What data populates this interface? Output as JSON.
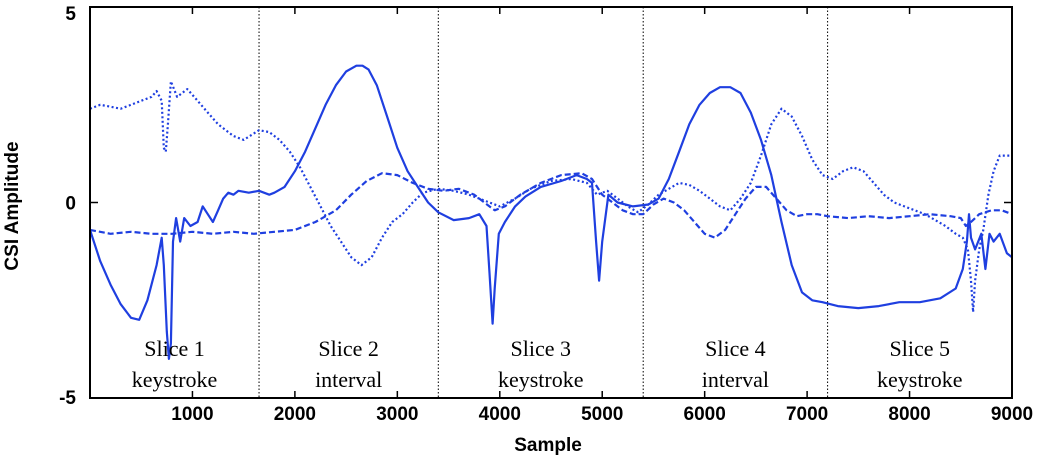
{
  "chart_data": {
    "type": "line",
    "xlabel": "Sample",
    "ylabel": "CSI Amplitude",
    "xlim": [
      0,
      9000
    ],
    "ylim": [
      -5,
      5
    ],
    "x_ticks": [
      "1000",
      "2000",
      "3000",
      "4000",
      "5000",
      "6000",
      "7000",
      "8000",
      "9000"
    ],
    "y_ticks": [
      "5",
      "0",
      "-5"
    ],
    "grid": false,
    "line_color": "#1f3fe0",
    "dividers": [
      1650,
      3400,
      5400,
      7200
    ],
    "slices": [
      {
        "label": "Slice 1",
        "sublabel": "keystroke",
        "x": 825
      },
      {
        "label": "Slice 2",
        "sublabel": "interval",
        "x": 2525
      },
      {
        "label": "Slice 3",
        "sublabel": "keystroke",
        "x": 4400
      },
      {
        "label": "Slice 4",
        "sublabel": "interval",
        "x": 6300
      },
      {
        "label": "Slice 5",
        "sublabel": "keystroke",
        "x": 8100
      }
    ],
    "series": [
      {
        "style": "solid",
        "points": [
          [
            0,
            -0.7
          ],
          [
            100,
            -1.5
          ],
          [
            200,
            -2.1
          ],
          [
            300,
            -2.6
          ],
          [
            400,
            -2.95
          ],
          [
            480,
            -3.0
          ],
          [
            560,
            -2.5
          ],
          [
            650,
            -1.6
          ],
          [
            700,
            -0.9
          ],
          [
            720,
            -1.6
          ],
          [
            750,
            -3.3
          ],
          [
            770,
            -4.0
          ],
          [
            790,
            -3.6
          ],
          [
            810,
            -1.0
          ],
          [
            840,
            -0.4
          ],
          [
            880,
            -1.0
          ],
          [
            920,
            -0.4
          ],
          [
            980,
            -0.6
          ],
          [
            1050,
            -0.5
          ],
          [
            1100,
            -0.1
          ],
          [
            1150,
            -0.3
          ],
          [
            1200,
            -0.5
          ],
          [
            1250,
            -0.2
          ],
          [
            1300,
            0.1
          ],
          [
            1350,
            0.25
          ],
          [
            1400,
            0.2
          ],
          [
            1450,
            0.3
          ],
          [
            1550,
            0.25
          ],
          [
            1650,
            0.3
          ],
          [
            1750,
            0.2
          ],
          [
            1800,
            0.25
          ],
          [
            1900,
            0.4
          ],
          [
            2000,
            0.8
          ],
          [
            2100,
            1.3
          ],
          [
            2200,
            1.9
          ],
          [
            2300,
            2.5
          ],
          [
            2400,
            3.0
          ],
          [
            2500,
            3.35
          ],
          [
            2600,
            3.5
          ],
          [
            2660,
            3.5
          ],
          [
            2720,
            3.4
          ],
          [
            2800,
            3.0
          ],
          [
            2900,
            2.2
          ],
          [
            3000,
            1.4
          ],
          [
            3100,
            0.8
          ],
          [
            3200,
            0.4
          ],
          [
            3300,
            0.0
          ],
          [
            3400,
            -0.25
          ],
          [
            3550,
            -0.45
          ],
          [
            3700,
            -0.4
          ],
          [
            3800,
            -0.3
          ],
          [
            3870,
            -0.6
          ],
          [
            3900,
            -1.8
          ],
          [
            3930,
            -3.1
          ],
          [
            3950,
            -2.2
          ],
          [
            3990,
            -0.8
          ],
          [
            4050,
            -0.5
          ],
          [
            4150,
            -0.1
          ],
          [
            4250,
            0.15
          ],
          [
            4400,
            0.4
          ],
          [
            4600,
            0.55
          ],
          [
            4750,
            0.7
          ],
          [
            4850,
            0.6
          ],
          [
            4900,
            0.5
          ],
          [
            4940,
            -1.0
          ],
          [
            4970,
            -2.0
          ],
          [
            5000,
            -1.0
          ],
          [
            5060,
            0.2
          ],
          [
            5150,
            0.0
          ],
          [
            5300,
            -0.1
          ],
          [
            5450,
            -0.05
          ],
          [
            5550,
            0.1
          ],
          [
            5650,
            0.6
          ],
          [
            5750,
            1.3
          ],
          [
            5850,
            2.0
          ],
          [
            5950,
            2.5
          ],
          [
            6050,
            2.8
          ],
          [
            6150,
            2.95
          ],
          [
            6250,
            2.95
          ],
          [
            6350,
            2.8
          ],
          [
            6450,
            2.3
          ],
          [
            6550,
            1.6
          ],
          [
            6650,
            0.7
          ],
          [
            6750,
            -0.5
          ],
          [
            6850,
            -1.6
          ],
          [
            6950,
            -2.3
          ],
          [
            7050,
            -2.5
          ],
          [
            7150,
            -2.55
          ],
          [
            7300,
            -2.65
          ],
          [
            7500,
            -2.7
          ],
          [
            7700,
            -2.65
          ],
          [
            7900,
            -2.55
          ],
          [
            8100,
            -2.55
          ],
          [
            8300,
            -2.45
          ],
          [
            8450,
            -2.2
          ],
          [
            8520,
            -1.7
          ],
          [
            8560,
            -1.0
          ],
          [
            8580,
            -0.3
          ],
          [
            8600,
            -0.9
          ],
          [
            8640,
            -1.2
          ],
          [
            8700,
            -0.8
          ],
          [
            8740,
            -1.7
          ],
          [
            8780,
            -0.8
          ],
          [
            8820,
            -1.0
          ],
          [
            8880,
            -0.8
          ],
          [
            8950,
            -1.3
          ],
          [
            9000,
            -1.4
          ]
        ]
      },
      {
        "style": "dotted",
        "points": [
          [
            0,
            2.4
          ],
          [
            100,
            2.5
          ],
          [
            200,
            2.45
          ],
          [
            300,
            2.4
          ],
          [
            400,
            2.5
          ],
          [
            500,
            2.6
          ],
          [
            600,
            2.7
          ],
          [
            650,
            2.85
          ],
          [
            700,
            2.6
          ],
          [
            720,
            1.4
          ],
          [
            740,
            1.3
          ],
          [
            760,
            2.0
          ],
          [
            790,
            3.1
          ],
          [
            820,
            2.9
          ],
          [
            850,
            2.7
          ],
          [
            900,
            2.8
          ],
          [
            950,
            2.9
          ],
          [
            1050,
            2.6
          ],
          [
            1150,
            2.3
          ],
          [
            1250,
            2.0
          ],
          [
            1400,
            1.7
          ],
          [
            1500,
            1.6
          ],
          [
            1650,
            1.85
          ],
          [
            1750,
            1.8
          ],
          [
            1850,
            1.6
          ],
          [
            1950,
            1.3
          ],
          [
            2050,
            0.9
          ],
          [
            2150,
            0.4
          ],
          [
            2250,
            -0.1
          ],
          [
            2350,
            -0.6
          ],
          [
            2450,
            -1.0
          ],
          [
            2550,
            -1.4
          ],
          [
            2650,
            -1.6
          ],
          [
            2750,
            -1.4
          ],
          [
            2850,
            -0.9
          ],
          [
            2950,
            -0.5
          ],
          [
            3050,
            -0.3
          ],
          [
            3150,
            0.0
          ],
          [
            3250,
            0.25
          ],
          [
            3400,
            0.35
          ],
          [
            3550,
            0.3
          ],
          [
            3700,
            0.2
          ],
          [
            3800,
            0.1
          ],
          [
            3900,
            0.0
          ],
          [
            4000,
            -0.1
          ],
          [
            4150,
            0.1
          ],
          [
            4300,
            0.35
          ],
          [
            4500,
            0.55
          ],
          [
            4700,
            0.6
          ],
          [
            4850,
            0.5
          ],
          [
            4950,
            0.2
          ],
          [
            5050,
            0.3
          ],
          [
            5150,
            0.1
          ],
          [
            5250,
            -0.1
          ],
          [
            5350,
            -0.25
          ],
          [
            5450,
            -0.05
          ],
          [
            5550,
            0.2
          ],
          [
            5650,
            0.35
          ],
          [
            5750,
            0.5
          ],
          [
            5850,
            0.45
          ],
          [
            5950,
            0.3
          ],
          [
            6050,
            0.1
          ],
          [
            6150,
            -0.1
          ],
          [
            6250,
            -0.2
          ],
          [
            6350,
            0.1
          ],
          [
            6450,
            0.5
          ],
          [
            6550,
            1.2
          ],
          [
            6650,
            2.0
          ],
          [
            6750,
            2.4
          ],
          [
            6850,
            2.2
          ],
          [
            6950,
            1.7
          ],
          [
            7050,
            1.1
          ],
          [
            7150,
            0.7
          ],
          [
            7250,
            0.6
          ],
          [
            7350,
            0.8
          ],
          [
            7450,
            0.9
          ],
          [
            7550,
            0.8
          ],
          [
            7650,
            0.5
          ],
          [
            7750,
            0.2
          ],
          [
            7850,
            0.0
          ],
          [
            7950,
            -0.1
          ],
          [
            8050,
            -0.2
          ],
          [
            8150,
            -0.3
          ],
          [
            8250,
            -0.45
          ],
          [
            8350,
            -0.6
          ],
          [
            8450,
            -0.8
          ],
          [
            8520,
            -0.9
          ],
          [
            8570,
            -1.2
          ],
          [
            8600,
            -2.0
          ],
          [
            8620,
            -2.8
          ],
          [
            8640,
            -2.0
          ],
          [
            8680,
            -1.2
          ],
          [
            8720,
            -0.7
          ],
          [
            8770,
            0.2
          ],
          [
            8820,
            0.8
          ],
          [
            8880,
            1.2
          ],
          [
            8950,
            1.2
          ],
          [
            9000,
            1.2
          ]
        ]
      },
      {
        "style": "dashed",
        "points": [
          [
            0,
            -0.7
          ],
          [
            200,
            -0.8
          ],
          [
            400,
            -0.75
          ],
          [
            600,
            -0.8
          ],
          [
            800,
            -0.8
          ],
          [
            1000,
            -0.75
          ],
          [
            1200,
            -0.8
          ],
          [
            1400,
            -0.75
          ],
          [
            1600,
            -0.8
          ],
          [
            1800,
            -0.75
          ],
          [
            2000,
            -0.7
          ],
          [
            2200,
            -0.5
          ],
          [
            2400,
            -0.2
          ],
          [
            2550,
            0.2
          ],
          [
            2700,
            0.55
          ],
          [
            2850,
            0.75
          ],
          [
            3000,
            0.7
          ],
          [
            3150,
            0.5
          ],
          [
            3300,
            0.35
          ],
          [
            3450,
            0.3
          ],
          [
            3600,
            0.35
          ],
          [
            3750,
            0.2
          ],
          [
            3850,
            0.0
          ],
          [
            3950,
            -0.2
          ],
          [
            4050,
            -0.1
          ],
          [
            4200,
            0.2
          ],
          [
            4400,
            0.5
          ],
          [
            4600,
            0.7
          ],
          [
            4800,
            0.75
          ],
          [
            4900,
            0.6
          ],
          [
            5000,
            0.2
          ],
          [
            5100,
            0.0
          ],
          [
            5200,
            -0.2
          ],
          [
            5300,
            -0.3
          ],
          [
            5400,
            -0.3
          ],
          [
            5500,
            -0.05
          ],
          [
            5600,
            0.1
          ],
          [
            5700,
            0.0
          ],
          [
            5800,
            -0.2
          ],
          [
            5900,
            -0.5
          ],
          [
            6000,
            -0.8
          ],
          [
            6100,
            -0.9
          ],
          [
            6200,
            -0.7
          ],
          [
            6300,
            -0.3
          ],
          [
            6400,
            0.1
          ],
          [
            6500,
            0.4
          ],
          [
            6600,
            0.4
          ],
          [
            6700,
            0.1
          ],
          [
            6800,
            -0.2
          ],
          [
            6900,
            -0.35
          ],
          [
            7000,
            -0.3
          ],
          [
            7100,
            -0.3
          ],
          [
            7200,
            -0.35
          ],
          [
            7400,
            -0.4
          ],
          [
            7600,
            -0.35
          ],
          [
            7800,
            -0.4
          ],
          [
            8000,
            -0.35
          ],
          [
            8200,
            -0.3
          ],
          [
            8400,
            -0.35
          ],
          [
            8500,
            -0.4
          ],
          [
            8550,
            -0.6
          ],
          [
            8600,
            -0.5
          ],
          [
            8680,
            -0.3
          ],
          [
            8800,
            -0.2
          ],
          [
            8900,
            -0.2
          ],
          [
            9000,
            -0.3
          ]
        ]
      }
    ]
  }
}
